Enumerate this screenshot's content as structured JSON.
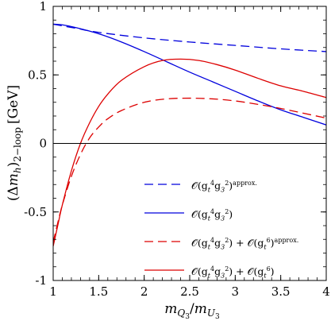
{
  "chart_data": {
    "type": "line",
    "xlabel": {
      "italic_main": "m",
      "sub1": "Q",
      "sub1sub": "3",
      "sep": "/",
      "italic_main2": "m",
      "sub2": "U",
      "sub2sub": "3"
    },
    "ylabel": {
      "open": "(",
      "delta": "Δ",
      "m": "m",
      "h": "h",
      "close": ")",
      "subscript": "2−loop",
      "unit": "[GeV]"
    },
    "xlim": [
      1,
      4
    ],
    "ylim": [
      -1,
      1
    ],
    "x_ticks": [
      1,
      1.5,
      2,
      2.5,
      3,
      3.5,
      4
    ],
    "x_tick_labels": [
      "1",
      "1.5",
      "2",
      "2.5",
      "3",
      "3.5",
      "4"
    ],
    "y_ticks": [
      -1,
      -0.5,
      0,
      0.5,
      1
    ],
    "y_tick_labels": [
      "-1",
      "-0.5",
      "0",
      "0.5",
      "1"
    ],
    "zero_line": true,
    "legend_position": "lower-right",
    "series": [
      {
        "legend": "𝒪(g<sub>t</sub><sup>4</sup>g<sub>3</sub><sup>2</sup>)<sup>approx.</sup>",
        "color": "#0000dd",
        "style": "dashed",
        "x": [
          1.0,
          1.25,
          1.5,
          2.0,
          2.5,
          3.0,
          3.5,
          4.0
        ],
        "y": [
          0.87,
          0.84,
          0.81,
          0.77,
          0.74,
          0.715,
          0.69,
          0.67
        ]
      },
      {
        "legend": "𝒪(g<sub>t</sub><sup>4</sup>g<sub>3</sub><sup>2</sup>)",
        "color": "#0000dd",
        "style": "solid",
        "x": [
          1.0,
          1.1,
          1.25,
          1.5,
          1.75,
          2.0,
          2.25,
          2.5,
          2.75,
          3.0,
          3.25,
          3.5,
          3.75,
          4.0
        ],
        "y": [
          0.87,
          0.865,
          0.845,
          0.8,
          0.74,
          0.67,
          0.595,
          0.52,
          0.45,
          0.38,
          0.31,
          0.245,
          0.19,
          0.135
        ]
      },
      {
        "legend": "𝒪(g<sub>t</sub><sup>4</sup>g<sub>3</sub><sup>2</sup>) + 𝒪(g<sub>t</sub><sup>6</sup>)<sup>approx.</sup>",
        "color": "#dd0000",
        "style": "dashed",
        "x": [
          1.0,
          1.05,
          1.1,
          1.2,
          1.3,
          1.4,
          1.5,
          1.6,
          1.75,
          2.0,
          2.25,
          2.5,
          2.75,
          3.0,
          3.25,
          3.5,
          3.75,
          4.0
        ],
        "y": [
          -0.72,
          -0.58,
          -0.45,
          -0.24,
          -0.08,
          0.04,
          0.12,
          0.18,
          0.24,
          0.3,
          0.325,
          0.33,
          0.325,
          0.31,
          0.285,
          0.255,
          0.22,
          0.185
        ]
      },
      {
        "legend": "𝒪(g<sub>t</sub><sup>4</sup>g<sub>3</sub><sup>2</sup>) + 𝒪(g<sub>t</sub><sup>6</sup>)",
        "color": "#dd0000",
        "style": "solid",
        "x": [
          1.0,
          1.05,
          1.1,
          1.2,
          1.3,
          1.4,
          1.5,
          1.6,
          1.75,
          2.0,
          2.2,
          2.4,
          2.6,
          2.8,
          3.0,
          3.25,
          3.5,
          3.75,
          4.0
        ],
        "y": [
          -0.75,
          -0.6,
          -0.45,
          -0.2,
          0.0,
          0.15,
          0.27,
          0.36,
          0.46,
          0.56,
          0.605,
          0.615,
          0.605,
          0.575,
          0.535,
          0.475,
          0.42,
          0.38,
          0.335
        ]
      }
    ]
  }
}
